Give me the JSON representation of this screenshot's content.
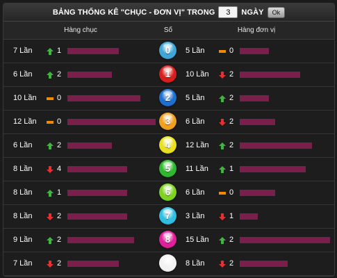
{
  "title": {
    "text": "BẢNG THỐNG KÊ \"CHỤC - ĐƠN VỊ\" TRONG",
    "days_value": "3",
    "days_label": "NGÀY",
    "ok_label": "Ok"
  },
  "header": {
    "tens": "Hàng chục",
    "number": "Số",
    "units": "Hàng đơn vị"
  },
  "colors": {
    "bar": "#7a1e4c",
    "up": "#3db83d",
    "down": "#e83030",
    "same": "#f08a00"
  },
  "rows": [
    {
      "number": "0",
      "ball_color": "#3fa6d6",
      "tens": {
        "count": "7 Lần",
        "trend": "up",
        "value": "1",
        "level": 0.57
      },
      "units": {
        "count": "5 Lần",
        "trend": "same",
        "value": "0",
        "level": 0.32
      }
    },
    {
      "number": "1",
      "ball_color": "#d91e1e",
      "tens": {
        "count": "6 Lần",
        "trend": "up",
        "value": "2",
        "level": 0.49
      },
      "units": {
        "count": "10 Lần",
        "trend": "down",
        "value": "2",
        "level": 0.67
      }
    },
    {
      "number": "2",
      "ball_color": "#1f6fd1",
      "tens": {
        "count": "10 Lần",
        "trend": "same",
        "value": "0",
        "level": 0.81
      },
      "units": {
        "count": "5 Lần",
        "trend": "up",
        "value": "2",
        "level": 0.32
      }
    },
    {
      "number": "3",
      "ball_color": "#f0a020",
      "tens": {
        "count": "12 Lần",
        "trend": "same",
        "value": "0",
        "level": 0.98
      },
      "units": {
        "count": "6 Lần",
        "trend": "down",
        "value": "2",
        "level": 0.39
      }
    },
    {
      "number": "4",
      "ball_color": "#e8e020",
      "tens": {
        "count": "6 Lần",
        "trend": "up",
        "value": "2",
        "level": 0.49
      },
      "units": {
        "count": "12 Lần",
        "trend": "up",
        "value": "2",
        "level": 0.8
      }
    },
    {
      "number": "5",
      "ball_color": "#2fb82f",
      "tens": {
        "count": "8 Lần",
        "trend": "down",
        "value": "4",
        "level": 0.66
      },
      "units": {
        "count": "11 Lần",
        "trend": "up",
        "value": "1",
        "level": 0.73
      }
    },
    {
      "number": "6",
      "ball_color": "#7ed321",
      "tens": {
        "count": "8 Lần",
        "trend": "up",
        "value": "1",
        "level": 0.66
      },
      "units": {
        "count": "6 Lần",
        "trend": "same",
        "value": "0",
        "level": 0.39
      }
    },
    {
      "number": "7",
      "ball_color": "#30bfe0",
      "tens": {
        "count": "8 Lần",
        "trend": "down",
        "value": "2",
        "level": 0.66
      },
      "units": {
        "count": "3 Lần",
        "trend": "down",
        "value": "1",
        "level": 0.2
      }
    },
    {
      "number": "8",
      "ball_color": "#e0209a",
      "tens": {
        "count": "9 Lần",
        "trend": "up",
        "value": "2",
        "level": 0.74
      },
      "units": {
        "count": "15 Lần",
        "trend": "up",
        "value": "2",
        "level": 1.0
      }
    },
    {
      "number": "",
      "ball_color": "#f2f2f2",
      "tens": {
        "count": "7 Lần",
        "trend": "down",
        "value": "2",
        "level": 0.57
      },
      "units": {
        "count": "8 Lần",
        "trend": "down",
        "value": "2",
        "level": 0.53
      }
    }
  ]
}
